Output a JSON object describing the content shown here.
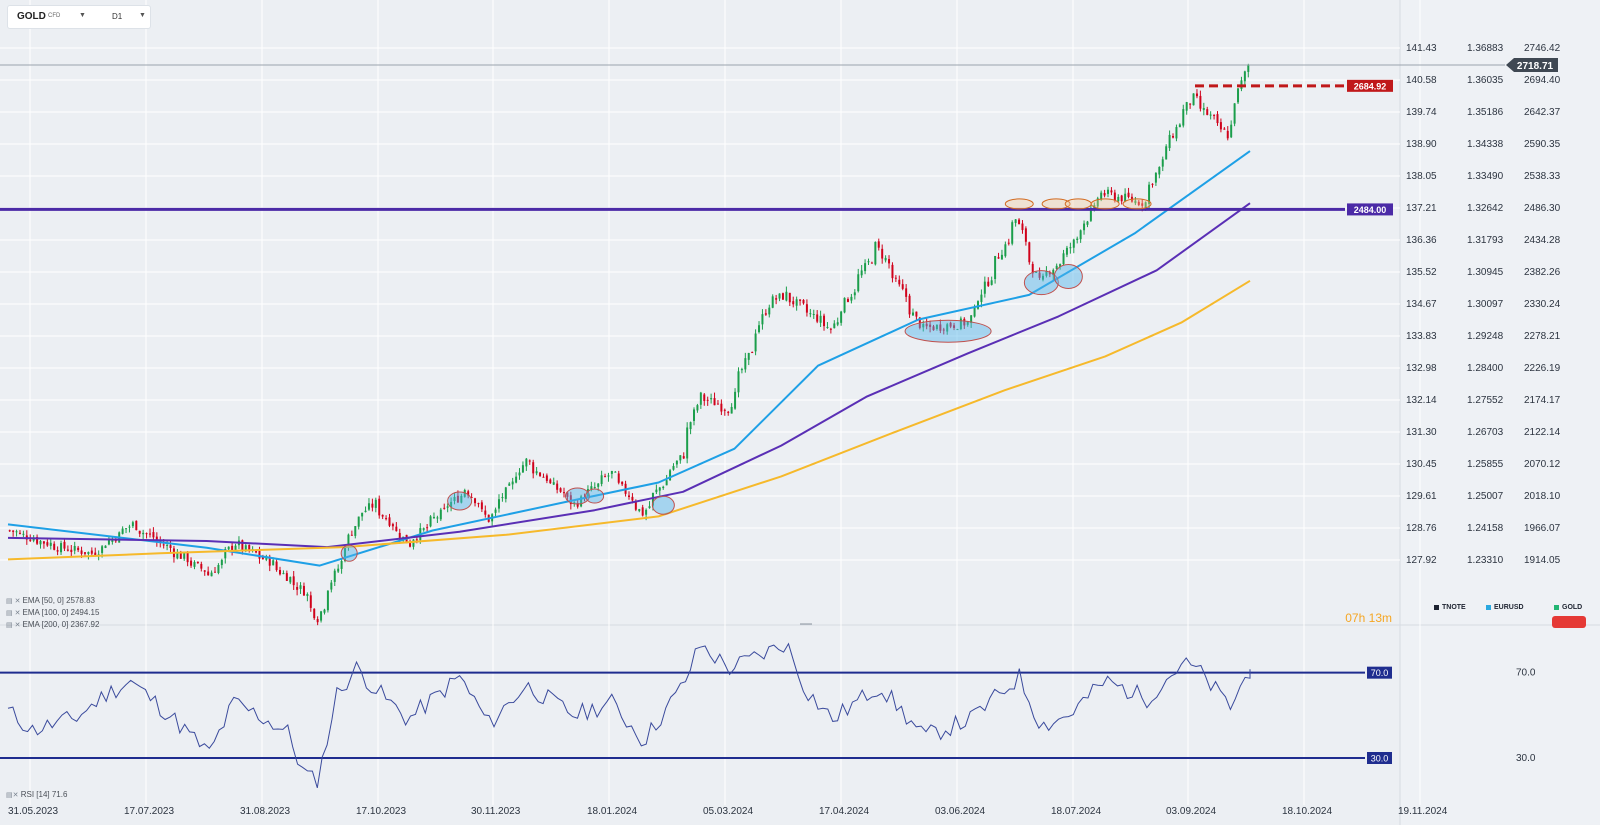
{
  "toolbar": {
    "symbol": "GOLD",
    "symbol_type": "CFD",
    "timeframe": "D1"
  },
  "indicators": [
    {
      "label": "EMA [50, 0] 2578.83",
      "color": "#1ea0e6"
    },
    {
      "label": "EMA [100, 0] 2494.15",
      "color": "#5a2fb5"
    },
    {
      "label": "EMA [200, 0] 2367.92",
      "color": "#f6b92b"
    }
  ],
  "rsi_label": "RSI [14] 71.6",
  "countdown": {
    "h": "07",
    "h_unit": "h",
    "m": "13",
    "m_unit": "m"
  },
  "instruments": [
    {
      "name": "TNOTE",
      "color": "#1d2330"
    },
    {
      "name": "EURUSD",
      "color": "#29a8e0"
    },
    {
      "name": "GOLD",
      "color": "#22b573"
    }
  ],
  "chart_data": [
    {
      "type": "candlestick",
      "symbol": "GOLD",
      "timeframe": "D1",
      "x_labels": [
        "31.05.2023",
        "17.07.2023",
        "31.08.2023",
        "17.10.2023",
        "30.11.2023",
        "18.01.2024",
        "05.03.2024",
        "17.04.2024",
        "03.06.2024",
        "18.07.2024",
        "03.09.2024",
        "18.10.2024",
        "19.11.2024"
      ],
      "y_ticks_price": [
        "2746.42",
        "2694.40",
        "2642.37",
        "2590.35",
        "2538.33",
        "2486.30",
        "2434.28",
        "2382.26",
        "2330.24",
        "2278.21",
        "2226.19",
        "2174.17",
        "2122.14",
        "2070.12",
        "2018.10",
        "1966.07",
        "1914.05"
      ],
      "y_ticks_tnote": [
        "141.43",
        "140.58",
        "139.74",
        "138.90",
        "138.05",
        "137.21",
        "136.36",
        "135.52",
        "134.67",
        "133.83",
        "132.98",
        "132.14",
        "131.30",
        "130.45",
        "129.61",
        "128.76",
        "127.92"
      ],
      "y_ticks_eurusd": [
        "1.36883",
        "1.36035",
        "1.35186",
        "1.34338",
        "1.33490",
        "1.32642",
        "1.31793",
        "1.30945",
        "1.30097",
        "1.29248",
        "1.28400",
        "1.27552",
        "1.26703",
        "1.25855",
        "1.25007",
        "1.24158",
        "1.23310"
      ],
      "price_range": [
        1886,
        2784
      ],
      "current_price": "2718.71",
      "current_price_value": 2718.71,
      "levels": [
        {
          "label": "2684.92",
          "value": 2684.92,
          "color": "#c0181a",
          "style": "dashed"
        },
        {
          "label": "2484.00",
          "value": 2484.0,
          "color": "#4b2aa6",
          "style": "solid"
        }
      ],
      "anchors": [
        {
          "date": "2023-05-31",
          "close": 1962
        },
        {
          "date": "2023-06-20",
          "close": 1935
        },
        {
          "date": "2023-07-04",
          "close": 1925
        },
        {
          "date": "2023-07-20",
          "close": 1972
        },
        {
          "date": "2023-08-21",
          "close": 1890
        },
        {
          "date": "2023-08-31",
          "close": 1941
        },
        {
          "date": "2023-09-14",
          "close": 1912
        },
        {
          "date": "2023-09-28",
          "close": 1864
        },
        {
          "date": "2023-10-04",
          "close": 1820
        },
        {
          "date": "2023-10-20",
          "close": 1981
        },
        {
          "date": "2023-10-27",
          "close": 2006
        },
        {
          "date": "2023-11-10",
          "close": 1940
        },
        {
          "date": "2023-12-04",
          "close": 2030
        },
        {
          "date": "2023-12-13",
          "close": 1980
        },
        {
          "date": "2023-12-28",
          "close": 2075
        },
        {
          "date": "2024-01-17",
          "close": 2005
        },
        {
          "date": "2024-02-01",
          "close": 2055
        },
        {
          "date": "2024-02-14",
          "close": 1990
        },
        {
          "date": "2024-03-01",
          "close": 2085
        },
        {
          "date": "2024-03-08",
          "close": 2180
        },
        {
          "date": "2024-03-20",
          "close": 2160
        },
        {
          "date": "2024-04-05",
          "close": 2330
        },
        {
          "date": "2024-04-12",
          "close": 2345
        },
        {
          "date": "2024-05-01",
          "close": 2290
        },
        {
          "date": "2024-05-20",
          "close": 2425
        },
        {
          "date": "2024-06-07",
          "close": 2290
        },
        {
          "date": "2024-06-26",
          "close": 2300
        },
        {
          "date": "2024-07-16",
          "close": 2468
        },
        {
          "date": "2024-07-25",
          "close": 2365
        },
        {
          "date": "2024-08-05",
          "close": 2410
        },
        {
          "date": "2024-08-20",
          "close": 2510
        },
        {
          "date": "2024-09-06",
          "close": 2495
        },
        {
          "date": "2024-09-20",
          "close": 2625
        },
        {
          "date": "2024-09-26",
          "close": 2665
        },
        {
          "date": "2024-10-10",
          "close": 2605
        },
        {
          "date": "2024-10-18",
          "close": 2718
        }
      ],
      "ema": [
        {
          "name": "EMA [50, 0]",
          "color": "#1ea0e6",
          "points": [
            [
              1972,
              "2023-05-31"
            ],
            [
              1934,
              "2023-08-20"
            ],
            [
              1905,
              "2023-10-05"
            ],
            [
              1962,
              "2023-11-20"
            ],
            [
              2010,
              "2024-01-15"
            ],
            [
              2040,
              "2024-02-20"
            ],
            [
              2095,
              "2024-03-22"
            ],
            [
              2230,
              "2024-04-25"
            ],
            [
              2305,
              "2024-06-05"
            ],
            [
              2345,
              "2024-07-20"
            ],
            [
              2445,
              "2024-09-01"
            ],
            [
              2578.83,
              "2024-10-18"
            ]
          ]
        },
        {
          "name": "EMA [100, 0]",
          "color": "#5a2fb5",
          "points": [
            [
              1950,
              "2023-05-31"
            ],
            [
              1945,
              "2023-08-20"
            ],
            [
              1935,
              "2023-10-08"
            ],
            [
              1960,
              "2023-12-01"
            ],
            [
              1995,
              "2024-01-25"
            ],
            [
              2025,
              "2024-03-01"
            ],
            [
              2100,
              "2024-04-10"
            ],
            [
              2180,
              "2024-05-15"
            ],
            [
              2250,
              "2024-06-25"
            ],
            [
              2310,
              "2024-08-01"
            ],
            [
              2385,
              "2024-09-10"
            ],
            [
              2494.15,
              "2024-10-18"
            ]
          ]
        },
        {
          "name": "EMA [200, 0]",
          "color": "#f6b92b",
          "points": [
            [
              1915,
              "2023-05-31"
            ],
            [
              1925,
              "2023-08-01"
            ],
            [
              1935,
              "2023-10-15"
            ],
            [
              1955,
              "2023-12-20"
            ],
            [
              1985,
              "2024-02-20"
            ],
            [
              2050,
              "2024-04-10"
            ],
            [
              2120,
              "2024-05-25"
            ],
            [
              2190,
              "2024-07-10"
            ],
            [
              2245,
              "2024-08-20"
            ],
            [
              2300,
              "2024-09-20"
            ],
            [
              2367.92,
              "2024-10-18"
            ]
          ]
        }
      ],
      "ovals_blue": [
        [
          "2023-12-01",
          2010,
          12,
          9
        ],
        [
          "2024-01-18",
          2018,
          12,
          8
        ],
        [
          "2024-01-25",
          2018,
          9,
          7
        ],
        [
          "2024-02-22",
          2003,
          11,
          9
        ],
        [
          "2024-06-17",
          2286,
          43,
          11
        ],
        [
          "2024-07-25",
          2365,
          17,
          12
        ],
        [
          "2024-08-05",
          2375,
          14,
          12
        ],
        [
          "2023-10-17",
          1925,
          8,
          8
        ]
      ],
      "ovals_orange": [
        [
          "2024-07-16",
          2493,
          14,
          5
        ],
        [
          "2024-07-31",
          2493,
          14,
          5
        ],
        [
          "2024-08-09",
          2493,
          13,
          5
        ],
        [
          "2024-08-20",
          2493,
          14,
          5
        ],
        [
          "2024-09-02",
          2493,
          14,
          5
        ]
      ]
    },
    {
      "type": "line",
      "name": "RSI [14]",
      "last_value": 71.6,
      "levels": [
        {
          "label": "70.0",
          "value": 70.0
        },
        {
          "label": "30.0",
          "value": 30.0
        }
      ],
      "y_ticks": [
        "70.0",
        "30.0"
      ],
      "y_range": [
        15,
        90
      ],
      "anchors": [
        [
          "2023-05-31",
          52
        ],
        [
          "2023-06-10",
          43
        ],
        [
          "2023-06-28",
          49
        ],
        [
          "2023-07-10",
          60
        ],
        [
          "2023-07-20",
          66
        ],
        [
          "2023-08-05",
          50
        ],
        [
          "2023-08-21",
          32
        ],
        [
          "2023-08-31",
          56
        ],
        [
          "2023-09-10",
          50
        ],
        [
          "2023-09-22",
          42
        ],
        [
          "2023-09-28",
          24
        ],
        [
          "2023-10-04",
          18
        ],
        [
          "2023-10-12",
          60
        ],
        [
          "2023-10-20",
          72
        ],
        [
          "2023-10-28",
          62
        ],
        [
          "2023-11-10",
          48
        ],
        [
          "2023-12-01",
          68
        ],
        [
          "2023-12-13",
          46
        ],
        [
          "2023-12-28",
          64
        ],
        [
          "2024-01-17",
          50
        ],
        [
          "2024-02-01",
          56
        ],
        [
          "2024-02-14",
          38
        ],
        [
          "2024-03-01",
          64
        ],
        [
          "2024-03-08",
          83
        ],
        [
          "2024-03-20",
          72
        ],
        [
          "2024-04-05",
          80
        ],
        [
          "2024-04-12",
          84
        ],
        [
          "2024-04-20",
          62
        ],
        [
          "2024-05-01",
          48
        ],
        [
          "2024-05-20",
          64
        ],
        [
          "2024-06-07",
          40
        ],
        [
          "2024-06-26",
          48
        ],
        [
          "2024-07-16",
          68
        ],
        [
          "2024-07-25",
          45
        ],
        [
          "2024-08-05",
          50
        ],
        [
          "2024-08-20",
          66
        ],
        [
          "2024-09-06",
          58
        ],
        [
          "2024-09-20",
          74
        ],
        [
          "2024-09-26",
          72
        ],
        [
          "2024-10-10",
          54
        ],
        [
          "2024-10-18",
          71.6
        ]
      ]
    }
  ]
}
